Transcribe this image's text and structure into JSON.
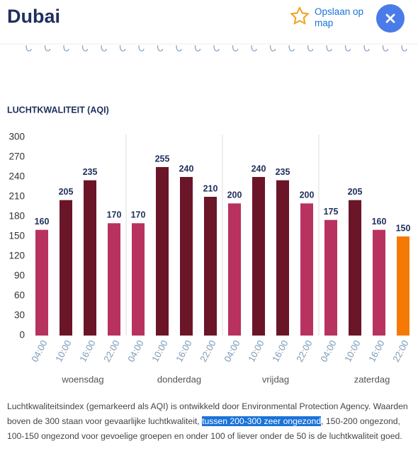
{
  "header": {
    "title": "Dubai",
    "save": "Opslaan op map"
  },
  "chart_data": {
    "type": "bar",
    "title": "LUCHTKWALITEIT (AQI)",
    "categories": [
      "04:00",
      "10:00",
      "16:00",
      "22:00",
      "04:00",
      "10:00",
      "16:00",
      "22:00",
      "04:00",
      "10:00",
      "16:00",
      "22:00",
      "04:00",
      "10:00",
      "16:00",
      "22:00"
    ],
    "groups": [
      "woensdag",
      "donderdag",
      "vrijdag",
      "zaterdag"
    ],
    "values": [
      160,
      205,
      235,
      170,
      170,
      255,
      240,
      210,
      200,
      240,
      235,
      200,
      175,
      205,
      160,
      150
    ],
    "colors": [
      "#b8325f",
      "#6b1529",
      "#6b1529",
      "#b8325f",
      "#b8325f",
      "#6b1529",
      "#6b1529",
      "#6b1529",
      "#b8325f",
      "#6b1529",
      "#6b1529",
      "#b8325f",
      "#b8325f",
      "#6b1529",
      "#b8325f",
      "#f57a05"
    ],
    "ylim": [
      0,
      300
    ],
    "yticks": [
      0,
      30,
      60,
      90,
      120,
      150,
      180,
      210,
      240,
      270,
      300
    ],
    "grid": false
  },
  "footer": {
    "before": "Luchtkwaliteitsindex (gemarkeerd als AQI) is ontwikkeld door Environmental Protection Agency. Waarden boven de 300 staan voor gevaarlijke luchtkwaliteit, ",
    "highlight": "tussen 200-300 zeer ongezond",
    "after": ", 150-200 ongezond, 100-150 ongezond voor gevoelige groepen en onder 100 of liever onder de 50 is de luchtkwaliteit goed."
  }
}
